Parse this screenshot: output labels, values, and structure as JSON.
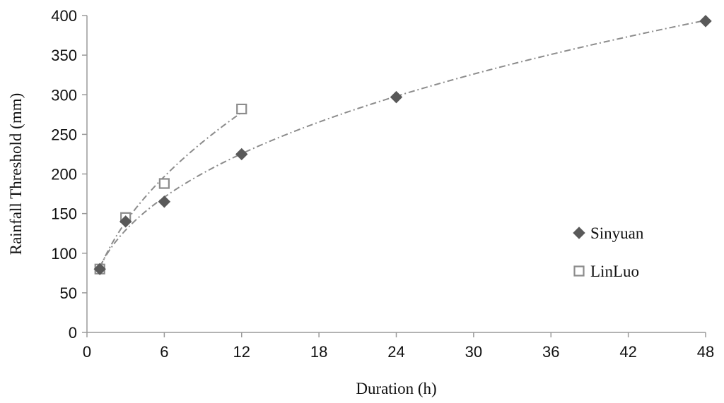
{
  "chart_data": {
    "type": "scatter",
    "title": "",
    "xlabel": "Duration (h)",
    "ylabel": "Rainfall Threshold (mm)",
    "xlim": [
      0,
      48
    ],
    "ylim": [
      0,
      400
    ],
    "xticks": [
      0,
      6,
      12,
      18,
      24,
      30,
      36,
      42,
      48
    ],
    "yticks": [
      0,
      50,
      100,
      150,
      200,
      250,
      300,
      350,
      400
    ],
    "grid": false,
    "legend_position": "right",
    "trendline": "power, dash-dot",
    "series": [
      {
        "name": "Sinyuan",
        "marker": "diamond-filled",
        "color": "#595959",
        "x": [
          1,
          3,
          6,
          12,
          24,
          48
        ],
        "y": [
          80,
          140,
          165,
          225,
          297,
          393
        ]
      },
      {
        "name": "LinLuo",
        "marker": "square-open",
        "color": "#8c8c8c",
        "x": [
          1,
          3,
          6,
          12
        ],
        "y": [
          80,
          145,
          188,
          282
        ]
      }
    ]
  }
}
